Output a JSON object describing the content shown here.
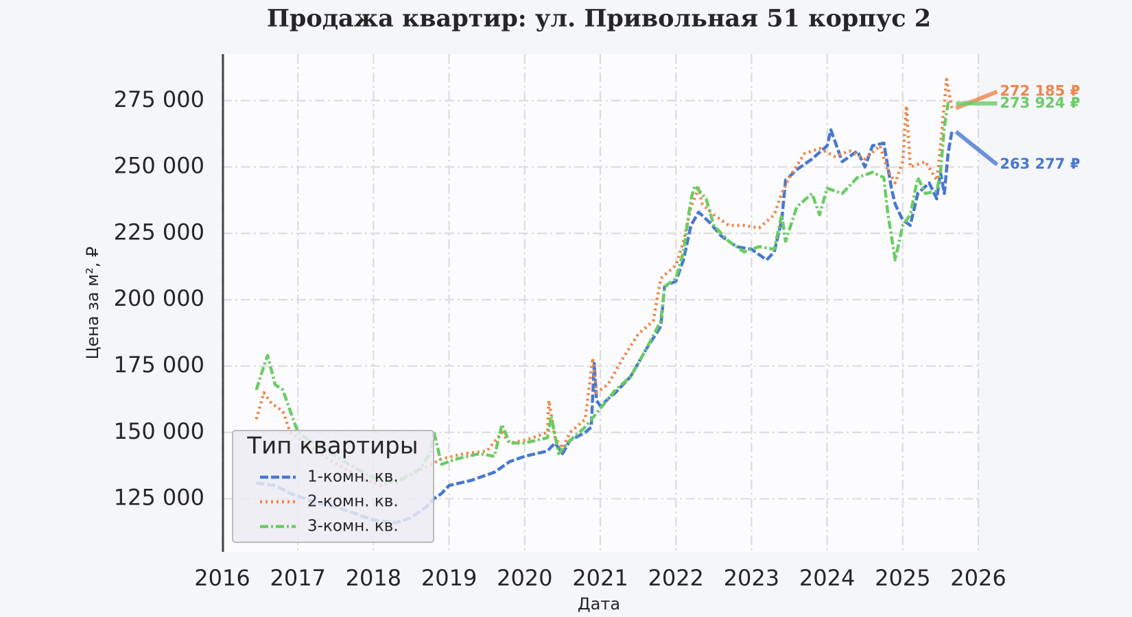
{
  "chart_data": {
    "type": "line",
    "title": "Продажа квартир: ул. Привольная 51 корпус 2",
    "xlabel": "Дата",
    "ylabel": "Цена за м², ₽",
    "legend_title": "Тип квартиры",
    "legend": "lower left",
    "grid": true,
    "xlim": [
      2016,
      2026
    ],
    "xticks": [
      2016,
      2017,
      2018,
      2019,
      2020,
      2021,
      2022,
      2023,
      2024,
      2025,
      2026
    ],
    "ylim": [
      105000,
      292500
    ],
    "yticks": [
      {
        "value": 125000,
        "label": "125 000"
      },
      {
        "value": 150000,
        "label": "150 000"
      },
      {
        "value": 175000,
        "label": "175 000"
      },
      {
        "value": 200000,
        "label": "200 000"
      },
      {
        "value": 225000,
        "label": "225 000"
      },
      {
        "value": 250000,
        "label": "250 000"
      },
      {
        "value": 275000,
        "label": "275 000"
      }
    ],
    "series": [
      {
        "name": "1-комн. кв.",
        "color": "#4878d0",
        "linestyle": "dashed",
        "end_label": "263 277 ₽",
        "x": [
          2016.45,
          2016.7,
          2016.9,
          2017.2,
          2017.5,
          2017.8,
          2018.0,
          2018.3,
          2018.5,
          2018.7,
          2018.8,
          2018.9,
          2019.0,
          2019.3,
          2019.6,
          2019.8,
          2020.0,
          2020.3,
          2020.4,
          2020.5,
          2020.6,
          2020.8,
          2020.88,
          2020.92,
          2020.95,
          2021.0,
          2021.2,
          2021.4,
          2021.6,
          2021.8,
          2021.85,
          2022.0,
          2022.1,
          2022.2,
          2022.3,
          2022.45,
          2022.6,
          2022.8,
          2023.0,
          2023.2,
          2023.3,
          2023.4,
          2023.45,
          2023.6,
          2023.8,
          2024.0,
          2024.05,
          2024.2,
          2024.4,
          2024.5,
          2024.6,
          2024.75,
          2024.85,
          2024.9,
          2025.0,
          2025.1,
          2025.2,
          2025.35,
          2025.45,
          2025.5,
          2025.55,
          2025.6,
          2025.65
        ],
        "values": [
          131000,
          130000,
          127000,
          124000,
          122000,
          119000,
          117000,
          116000,
          118000,
          122000,
          125000,
          127000,
          130000,
          132000,
          135000,
          139000,
          141000,
          143000,
          146000,
          142000,
          147000,
          150000,
          152000,
          176000,
          162000,
          160000,
          165000,
          171000,
          181000,
          190000,
          205000,
          207000,
          215000,
          228000,
          233000,
          229000,
          224000,
          220000,
          219000,
          215000,
          218000,
          230000,
          245000,
          249000,
          253000,
          258000,
          264000,
          252000,
          256000,
          250000,
          258000,
          259000,
          242000,
          236000,
          230000,
          228000,
          240000,
          244000,
          238000,
          248000,
          240000,
          255000,
          263277
        ]
      },
      {
        "name": "2-комн. кв.",
        "color": "#ee854a",
        "linestyle": "dotted",
        "end_label": "272 185 ₽",
        "x": [
          2016.45,
          2016.55,
          2016.65,
          2016.8,
          2016.9,
          2017.1,
          2017.4,
          2017.7,
          2017.9,
          2018.1,
          2018.4,
          2018.7,
          2018.9,
          2019.2,
          2019.5,
          2019.7,
          2019.8,
          2020.0,
          2020.3,
          2020.32,
          2020.4,
          2020.5,
          2020.6,
          2020.8,
          2020.9,
          2020.95,
          2021.1,
          2021.3,
          2021.5,
          2021.7,
          2021.8,
          2022.0,
          2022.1,
          2022.2,
          2022.3,
          2022.35,
          2022.5,
          2022.7,
          2022.9,
          2023.1,
          2023.3,
          2023.4,
          2023.5,
          2023.7,
          2023.9,
          2024.1,
          2024.3,
          2024.5,
          2024.7,
          2024.8,
          2024.9,
          2025.0,
          2025.05,
          2025.1,
          2025.3,
          2025.45,
          2025.5,
          2025.58,
          2025.65
        ],
        "values": [
          155000,
          165000,
          161000,
          158000,
          150000,
          146000,
          140000,
          135000,
          132000,
          130000,
          133000,
          137000,
          140000,
          142000,
          143000,
          150000,
          146000,
          147000,
          150000,
          162000,
          148000,
          144000,
          150000,
          155000,
          178000,
          165000,
          168000,
          178000,
          187000,
          192000,
          208000,
          213000,
          222000,
          235000,
          242000,
          236000,
          232000,
          228000,
          228000,
          227000,
          232000,
          240000,
          246000,
          255000,
          257000,
          254000,
          256000,
          253000,
          258000,
          249000,
          244000,
          252000,
          273000,
          250000,
          252000,
          245000,
          258000,
          283000,
          272185
        ]
      },
      {
        "name": "3-комн. кв.",
        "color": "#6acc64",
        "linestyle": "dashdot",
        "end_label": "273 924 ₽",
        "x": [
          2016.45,
          2016.55,
          2016.6,
          2016.7,
          2016.8,
          2016.9,
          2017.0,
          2017.2,
          2017.5,
          2017.8,
          2018.0,
          2018.3,
          2018.6,
          2018.75,
          2018.8,
          2018.9,
          2019.1,
          2019.4,
          2019.6,
          2019.7,
          2019.8,
          2020.0,
          2020.3,
          2020.35,
          2020.45,
          2020.6,
          2020.8,
          2021.0,
          2021.2,
          2021.4,
          2021.6,
          2021.8,
          2021.85,
          2022.0,
          2022.1,
          2022.2,
          2022.25,
          2022.4,
          2022.5,
          2022.7,
          2022.9,
          2023.1,
          2023.3,
          2023.4,
          2023.45,
          2023.6,
          2023.8,
          2023.9,
          2024.0,
          2024.2,
          2024.4,
          2024.6,
          2024.75,
          2024.8,
          2024.9,
          2025.0,
          2025.1,
          2025.2,
          2025.3,
          2025.45,
          2025.5,
          2025.55,
          2025.6,
          2025.65
        ],
        "values": [
          166000,
          175000,
          179000,
          168000,
          166000,
          158000,
          150000,
          146000,
          141000,
          136000,
          133000,
          131000,
          136000,
          142000,
          150000,
          138000,
          140000,
          142000,
          141000,
          153000,
          146000,
          146000,
          148000,
          156000,
          142000,
          147000,
          152000,
          159000,
          166000,
          171000,
          181000,
          192000,
          205000,
          208000,
          218000,
          238000,
          243000,
          238000,
          228000,
          222000,
          218000,
          220000,
          219000,
          232000,
          222000,
          235000,
          240000,
          232000,
          242000,
          240000,
          246000,
          248000,
          246000,
          233000,
          215000,
          228000,
          232000,
          246000,
          240000,
          241000,
          248000,
          265000,
          274000,
          273924
        ]
      }
    ]
  }
}
